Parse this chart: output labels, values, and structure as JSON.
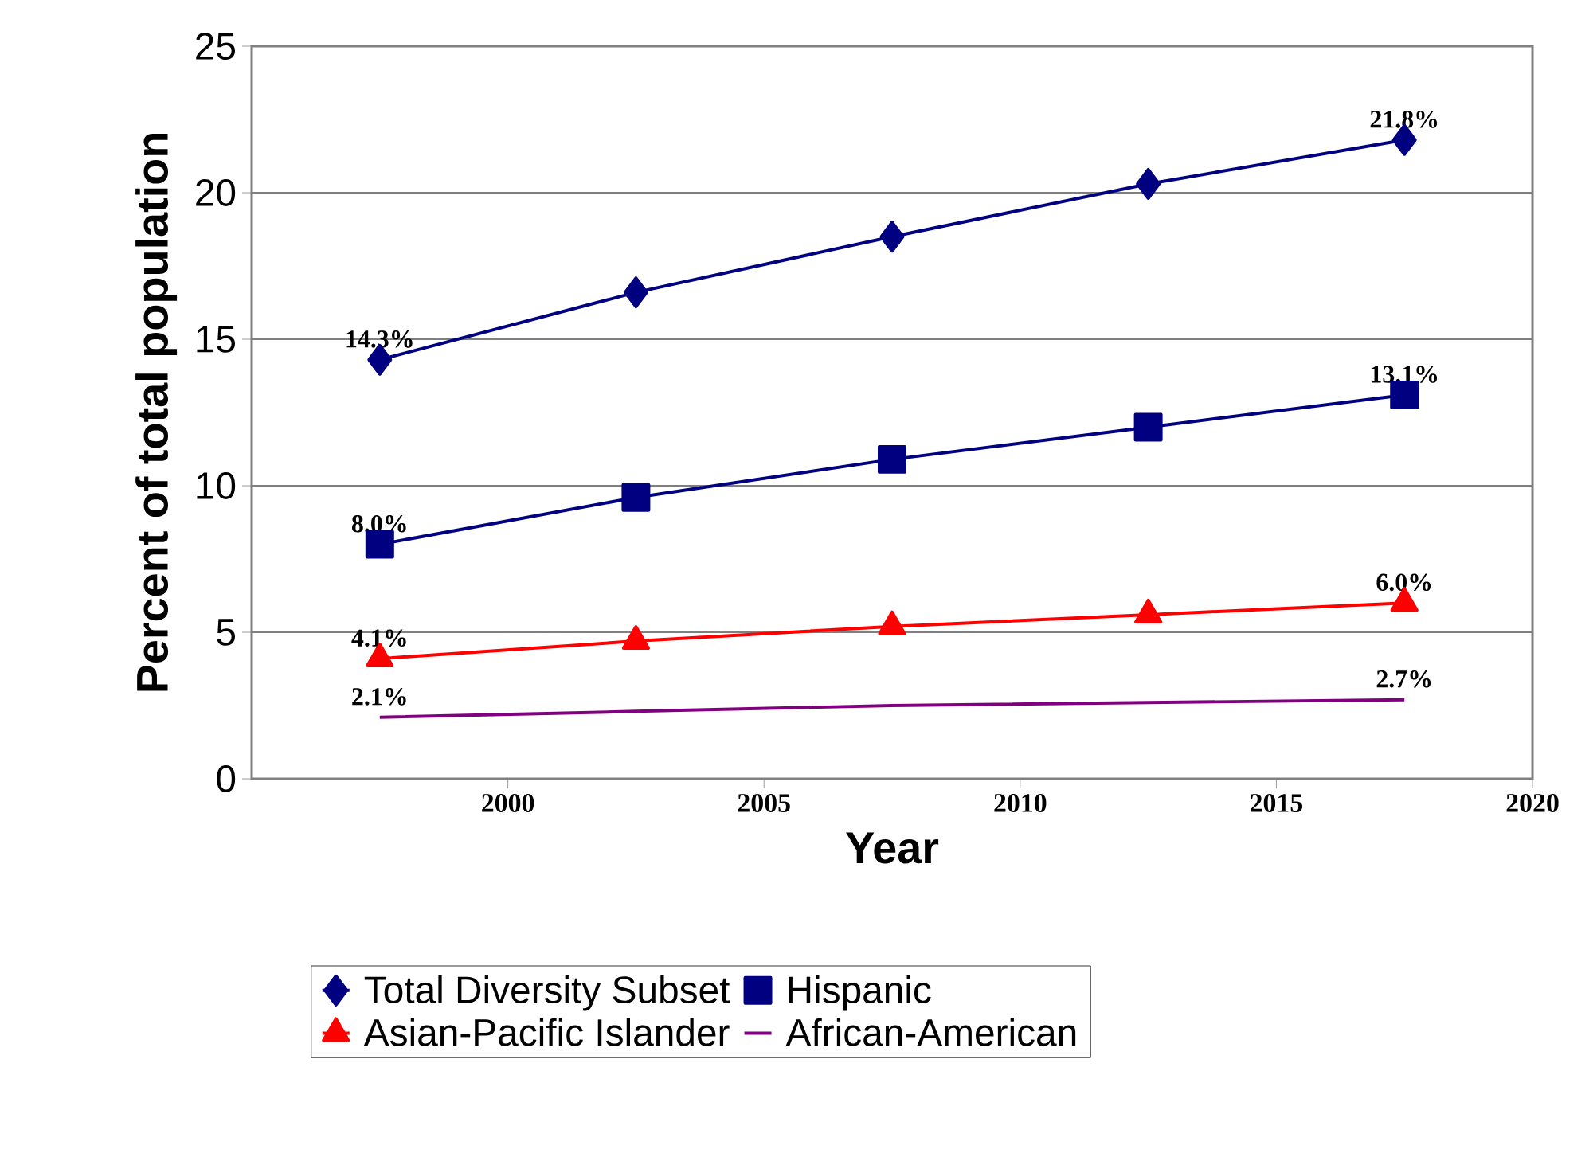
{
  "chart_data": {
    "type": "line",
    "xlabel": "Year",
    "ylabel": "Percent of total population",
    "x": [
      1997.5,
      2002.5,
      2007.5,
      2012.5,
      2017.5
    ],
    "xlim": [
      1995,
      2020
    ],
    "xticks": [
      2000,
      2005,
      2010,
      2015,
      2020
    ],
    "ylim": [
      0,
      25
    ],
    "yticks": [
      0,
      5,
      10,
      15,
      20,
      25
    ],
    "grid": "y",
    "legend": "bottom",
    "series": [
      {
        "name": "Total Diversity Subset",
        "color": "#000080",
        "marker": "diamond",
        "values": [
          14.3,
          16.6,
          18.5,
          20.3,
          21.8
        ],
        "value_labels": [
          "14.3%",
          null,
          null,
          null,
          "21.8%"
        ]
      },
      {
        "name": "Hispanic",
        "color": "#000080",
        "marker": "square",
        "values": [
          8.0,
          9.6,
          10.9,
          12.0,
          13.1
        ],
        "value_labels": [
          "8.0%",
          null,
          null,
          null,
          "13.1%"
        ]
      },
      {
        "name": "Asian-Pacific Islander",
        "color": "#ff0000",
        "marker": "triangle",
        "values": [
          4.1,
          4.7,
          5.2,
          5.6,
          6.0
        ],
        "value_labels": [
          "4.1%",
          null,
          null,
          null,
          "6.0%"
        ]
      },
      {
        "name": "African-American",
        "color": "#800080",
        "marker": "none",
        "values": [
          2.1,
          2.3,
          2.5,
          2.6,
          2.7
        ],
        "value_labels": [
          "2.1%",
          null,
          null,
          null,
          "2.7%"
        ]
      }
    ]
  }
}
